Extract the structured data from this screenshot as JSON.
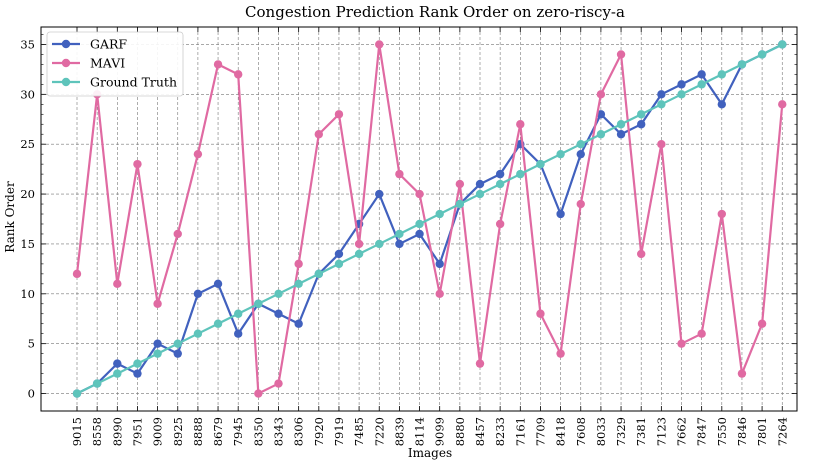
{
  "chart_data": {
    "type": "line",
    "title": "Congestion Prediction Rank Order on zero-riscy-a",
    "xlabel": "Images",
    "ylabel": "Rank Order",
    "ylim": [
      -1.75,
      36.75
    ],
    "yticks": [
      0,
      5,
      10,
      15,
      20,
      25,
      30,
      35
    ],
    "grid": true,
    "legend_position": "top-left",
    "categories": [
      "9015",
      "8558",
      "8990",
      "7951",
      "9009",
      "8925",
      "8888",
      "8679",
      "7945",
      "8350",
      "8343",
      "8306",
      "7920",
      "7919",
      "7485",
      "7220",
      "8839",
      "8114",
      "9099",
      "8880",
      "8457",
      "8233",
      "7161",
      "7709",
      "8418",
      "7608",
      "8033",
      "7329",
      "7381",
      "7123",
      "7662",
      "7847",
      "7550",
      "7846",
      "7801",
      "7264"
    ],
    "series": [
      {
        "name": "GARF",
        "color": "#4161be",
        "values": [
          0,
          1,
          3,
          2,
          5,
          4,
          10,
          11,
          6,
          9,
          8,
          7,
          12,
          14,
          17,
          20,
          15,
          16,
          13,
          19,
          21,
          22,
          25,
          23,
          18,
          24,
          28,
          26,
          27,
          30,
          31,
          32,
          29,
          33,
          34,
          35
        ]
      },
      {
        "name": "MAVI",
        "color": "#e06aa2",
        "values": [
          12,
          30,
          11,
          23,
          9,
          16,
          24,
          33,
          32,
          0,
          1,
          13,
          26,
          28,
          15,
          35,
          22,
          20,
          10,
          21,
          3,
          17,
          27,
          8,
          4,
          19,
          30,
          34,
          14,
          25,
          5,
          6,
          18,
          2,
          7,
          29
        ]
      },
      {
        "name": "Ground Truth",
        "color": "#5ec4bb",
        "values": [
          0,
          1,
          2,
          3,
          4,
          5,
          6,
          7,
          8,
          9,
          10,
          11,
          12,
          13,
          14,
          15,
          16,
          17,
          18,
          19,
          20,
          21,
          22,
          23,
          24,
          25,
          26,
          27,
          28,
          29,
          30,
          31,
          32,
          33,
          34,
          35
        ]
      }
    ]
  }
}
